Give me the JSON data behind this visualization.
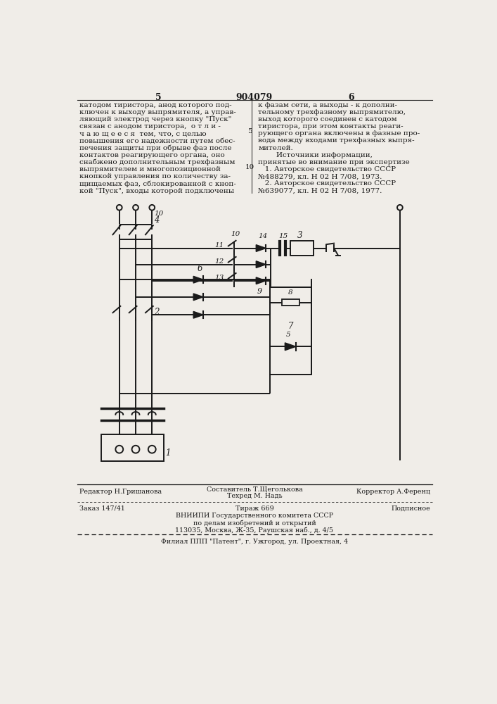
{
  "bg_color": "#f0ede8",
  "line_color": "#1a1a1a",
  "page_number_left": "5",
  "page_number_center": "904079",
  "page_number_right": "6",
  "left_col_text": [
    "катодом тиристора, анод которого под-",
    "ключен к выходу выпрямителя, а управ-",
    "ляющий электрод через кнопку \"Пуск\"",
    "связан с анодом тиристора,  о т л и -",
    "ч а ю щ е е с я  тем, что, с целью",
    "повышения его надежности путем обес-",
    "печения защиты при обрыве фаз после",
    "контактов реагирующего органа, оно",
    "снабжено дополнительным трехфазным",
    "выпрямителем и многопозиционной",
    "кнопкой управления по количеству за-",
    "щищаемых фаз, сблокированной с кноп-",
    "кой \"Пуск\", входы которой подключены"
  ],
  "right_col_text": [
    "к фазам сети, а выходы - к дополни-",
    "тельному трехфазному выпрямителю,",
    "выход которого соединен с катодом",
    "тиристора, при этом контакты реаги-",
    "рующего органа включены в фазные про-",
    "вода между входами трехфазных выпря-",
    "мителей.",
    "        Источники информации,",
    "принятые во внимание при экспертизе",
    "   1. Авторское свидетельство СССР",
    "№488279, кл. Н 02 Н 7/08, 1973.",
    "   2. Авторское свидетельство СССР",
    "№639077, кл. Н 02 Н 7/08, 1977."
  ],
  "footer_line1_left": "Редактор Н.Гришанова",
  "footer_line1_right": "Корректор А.Ференц",
  "footer_sost": "Составитель Т.Щеголькова",
  "footer_tech": "Техред М. Надь",
  "footer_line2_left": "Заказ 147/41",
  "footer_line2_center": "Тираж 669",
  "footer_line2_right": "Подписное",
  "footer_line3": "ВНИИПИ Государственного комитета СССР",
  "footer_line4": "по делам изобретений и открытий",
  "footer_line5": "113035, Москва, Ж-35, Раушская наб., д. 4/5",
  "footer_line6": "Филиал ППП \"Патент\", г. Ужгород, ул. Проектная, 4"
}
